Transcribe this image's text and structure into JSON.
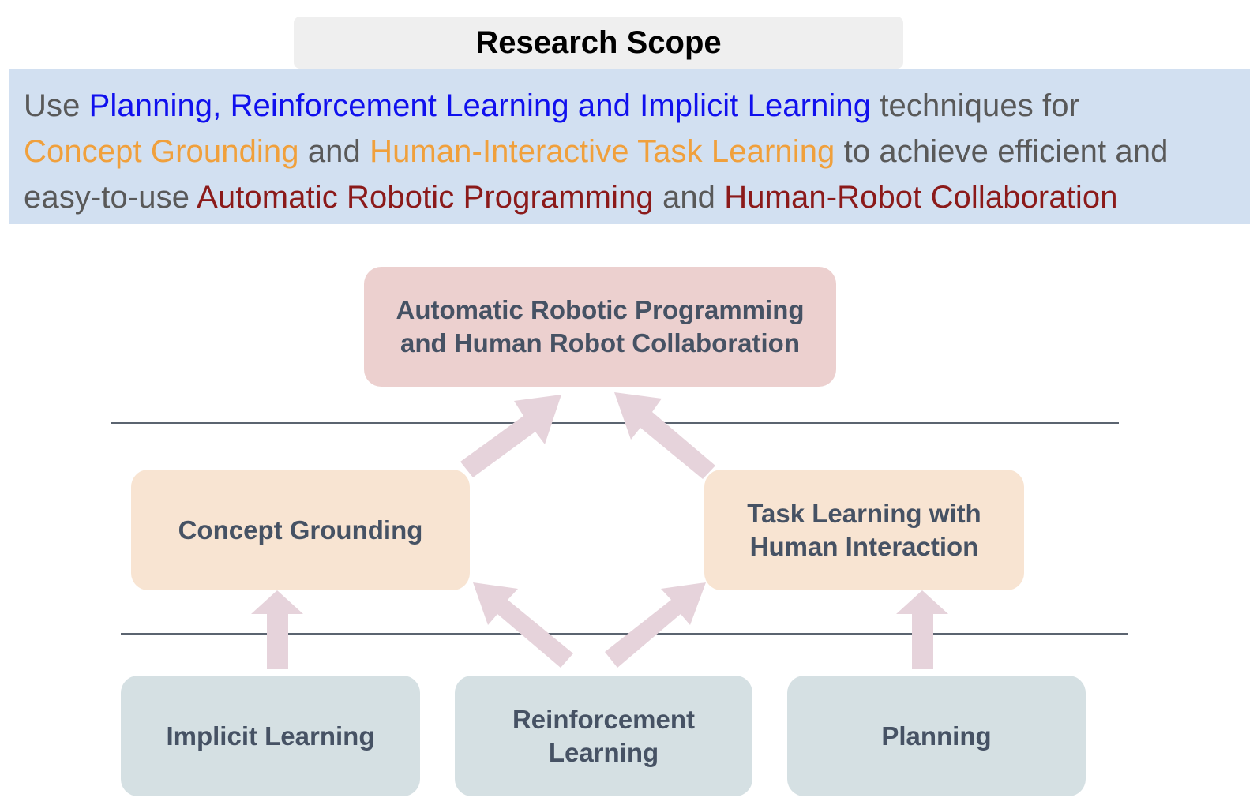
{
  "header": {
    "title": "Research Scope"
  },
  "scope_statement": {
    "segments": [
      {
        "text": "Use ",
        "color": "#595959"
      },
      {
        "text": "Planning, Reinforcement Learning and Implicit Learning",
        "color": "#1010ee"
      },
      {
        "text": " techniques for ",
        "color": "#595959"
      },
      {
        "text": "Concept Grounding",
        "color": "#f0a03c"
      },
      {
        "text": " and ",
        "color": "#595959"
      },
      {
        "text": "Human-Interactive Task Learning",
        "color": "#f0a03c"
      },
      {
        "text": " to achieve efficient and easy-to-use ",
        "color": "#595959"
      },
      {
        "text": "Automatic Robotic Programming",
        "color": "#8b1a1a"
      },
      {
        "text": " and ",
        "color": "#595959"
      },
      {
        "text": "Human-Robot Collaboration",
        "color": "#8b1a1a"
      }
    ]
  },
  "diagram": {
    "top": {
      "label": "Automatic Robotic Programming\nand Human Robot Collaboration",
      "color": "#ecd0cf"
    },
    "middle": [
      {
        "label": "Concept Grounding",
        "color": "#f8e4d2"
      },
      {
        "label": "Task Learning with\nHuman Interaction",
        "color": "#f8e4d2"
      }
    ],
    "bottom": [
      {
        "label": "Implicit Learning",
        "color": "#d5e0e3"
      },
      {
        "label": "Reinforcement\nLearning",
        "color": "#d5e0e3"
      },
      {
        "label": "Planning",
        "color": "#d5e0e3"
      }
    ],
    "arrow_color": "#e6d3db",
    "connections": [
      {
        "from": "Implicit Learning",
        "to": "Concept Grounding"
      },
      {
        "from": "Reinforcement Learning",
        "to": "Concept Grounding"
      },
      {
        "from": "Reinforcement Learning",
        "to": "Task Learning with Human Interaction"
      },
      {
        "from": "Planning",
        "to": "Task Learning with Human Interaction"
      },
      {
        "from": "Concept Grounding",
        "to": "Automatic Robotic Programming and Human Robot Collaboration"
      },
      {
        "from": "Task Learning with Human Interaction",
        "to": "Automatic Robotic Programming and Human Robot Collaboration"
      }
    ]
  }
}
